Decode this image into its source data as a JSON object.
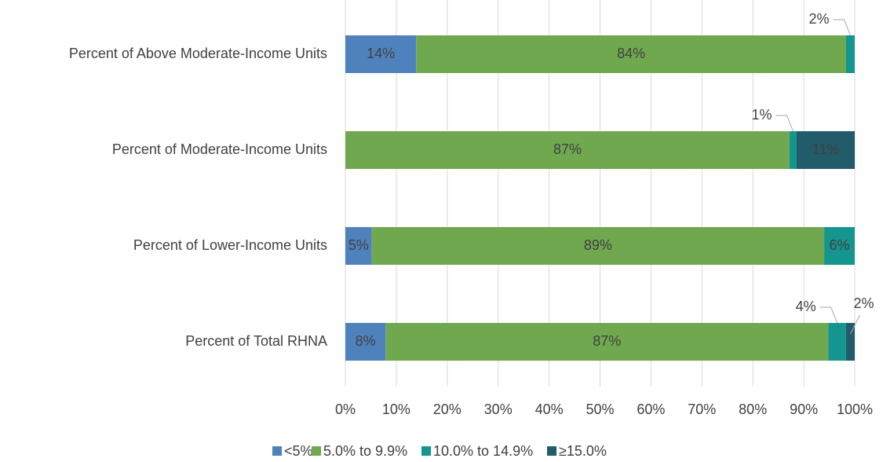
{
  "chart_data": {
    "type": "stacked-bar-horizontal",
    "categories": [
      "Percent of Above Moderate-Income Units",
      "Percent of Moderate-Income Units",
      "Percent of Lower-Income Units",
      "Percent of Total RHNA"
    ],
    "series": [
      {
        "name": "<5%",
        "color": "#4f81bd",
        "values": [
          13.9,
          0,
          5.2,
          7.9
        ],
        "value_labels": [
          "14%",
          null,
          "5%",
          "8%"
        ]
      },
      {
        "name": "5.0% to 9.9%",
        "color": "#70a84f",
        "values": [
          84.4,
          87.2,
          88.8,
          86.9
        ],
        "value_labels": [
          "84%",
          "87%",
          "89%",
          "87%"
        ]
      },
      {
        "name": "10.0% to 14.9%",
        "color": "#14958f",
        "values": [
          1.7,
          1.4,
          6.0,
          3.5
        ],
        "value_labels": [
          "2%",
          "1%",
          "6%",
          "4%"
        ]
      },
      {
        "name": "≥15.0%",
        "color": "#225b69",
        "values": [
          0,
          11.4,
          0,
          1.7
        ],
        "value_labels": [
          null,
          "11%",
          null,
          "2%"
        ]
      }
    ],
    "xlim": [
      0,
      100
    ],
    "xticks": [
      {
        "value": 0,
        "label": "0%"
      },
      {
        "value": 10,
        "label": "10%"
      },
      {
        "value": 20,
        "label": "20%"
      },
      {
        "value": 30,
        "label": "30%"
      },
      {
        "value": 40,
        "label": "40%"
      },
      {
        "value": 50,
        "label": "50%"
      },
      {
        "value": 60,
        "label": "60%"
      },
      {
        "value": 70,
        "label": "70%"
      },
      {
        "value": 80,
        "label": "80%"
      },
      {
        "value": 90,
        "label": "90%"
      },
      {
        "value": 100,
        "label": "100%"
      }
    ],
    "grid": true,
    "legend": "bottom"
  }
}
